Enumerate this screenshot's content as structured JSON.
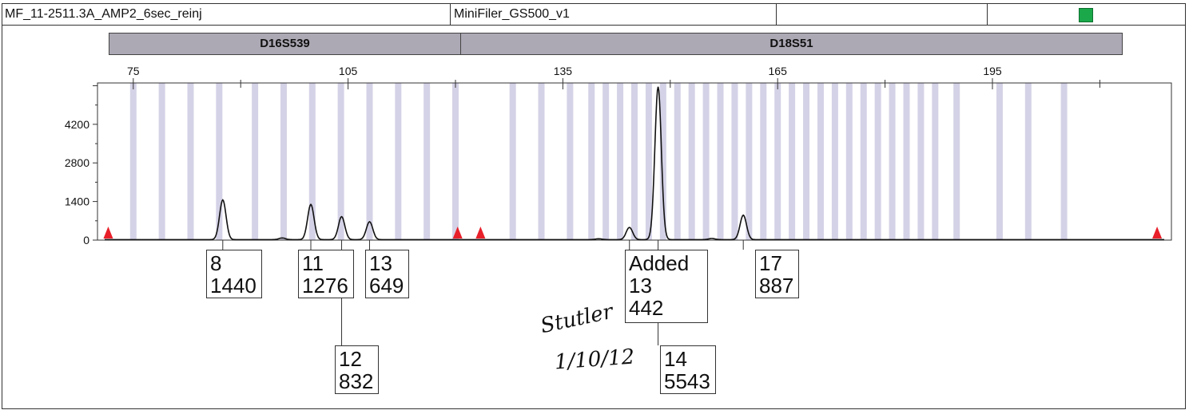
{
  "header": {
    "sample_name": "MF_11-2511.3A_AMP2_6sec_reinj",
    "panel_name": "MiniFiler_GS500_v1",
    "cell3": "",
    "cell4": "",
    "status_color": "#1aa84a"
  },
  "markers": [
    {
      "name": "D16S539"
    },
    {
      "name": "D18S51"
    }
  ],
  "chart_data": {
    "type": "line",
    "title": "",
    "xlabel": "",
    "ylabel": "",
    "x_ticks": [
      75,
      105,
      135,
      165,
      195
    ],
    "y_ticks": [
      0,
      1400,
      2800,
      4200
    ],
    "xlim": [
      70,
      220
    ],
    "ylim": [
      0,
      5700
    ],
    "grid": false,
    "bin_color": "#d4d2e6",
    "bins": [
      75,
      79,
      83,
      87,
      92,
      96,
      100,
      104,
      108,
      112,
      116,
      120,
      128,
      132,
      136,
      139,
      141,
      143,
      145,
      147,
      149,
      151,
      153,
      155,
      157,
      159,
      161,
      163,
      165,
      167,
      169,
      171,
      173,
      175,
      177,
      179,
      181,
      183,
      185,
      187,
      190,
      196,
      200,
      205
    ],
    "peaks": [
      {
        "x": 87.5,
        "height": 1440,
        "allele": "8",
        "rfu": "1440"
      },
      {
        "x": 99.8,
        "height": 1276,
        "allele": "11",
        "rfu": "1276"
      },
      {
        "x": 104.1,
        "height": 832,
        "allele": "12",
        "rfu": "832"
      },
      {
        "x": 108.0,
        "height": 649,
        "allele": "13",
        "rfu": "649"
      },
      {
        "x": 144.3,
        "height": 442,
        "allele": "13",
        "rfu": "442",
        "note": "Added"
      },
      {
        "x": 148.3,
        "height": 5543,
        "allele": "14",
        "rfu": "5543"
      },
      {
        "x": 160.2,
        "height": 887,
        "allele": "17",
        "rfu": "887"
      }
    ],
    "minor_peaks": [
      {
        "x": 95.8,
        "height": 60
      },
      {
        "x": 140.0,
        "height": 30
      },
      {
        "x": 155.8,
        "height": 40
      }
    ],
    "off_scale_markers": [
      71.5,
      120.3,
      123.5,
      218.0
    ],
    "off_scale_color": "#e8202a"
  },
  "annotations": {
    "handwritten_word": "Stutler",
    "handwritten_date": "1/10/12"
  }
}
